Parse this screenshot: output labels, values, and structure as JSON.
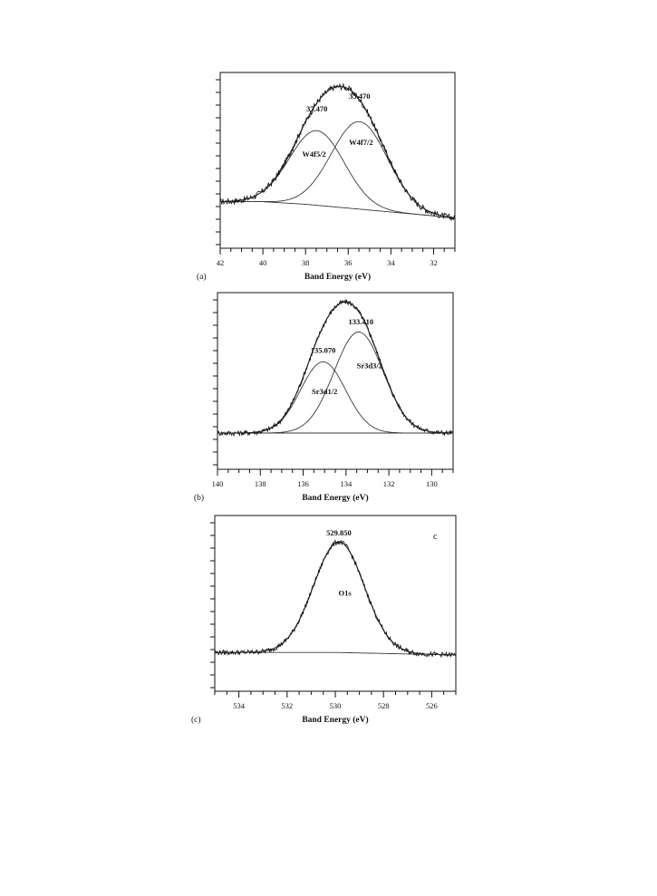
{
  "colors": {
    "ink": "#111111",
    "curve": "#3a3a3a",
    "background": "#ffffff"
  },
  "chart_data": [
    {
      "type": "line",
      "panel_label": "(a)",
      "xlabel": "Band Energy (eV)",
      "ylabel": "",
      "xlim": [
        42,
        31
      ],
      "x_reversed": true,
      "x_ticks": [
        42,
        40,
        38,
        36,
        34,
        32
      ],
      "y_ticks_unlabeled": true,
      "y_axis_scale": "arbitrary intensity (0 = baseline bottom, 1 = maximum)",
      "ylim": [
        0,
        1
      ],
      "grid": false,
      "legend": "none",
      "baseline": {
        "description": "background",
        "x": [
          42,
          40,
          38,
          36,
          34,
          32,
          31
        ],
        "y": [
          0.08,
          0.08,
          0.06,
          0.03,
          0.0,
          -0.03,
          -0.05
        ]
      },
      "peaks": [
        {
          "center": 37.47,
          "amplitude": 0.58,
          "sigma": 1.28
        },
        {
          "center": 35.47,
          "amplitude": 0.68,
          "sigma": 1.32
        }
      ],
      "data_noise": 0.025,
      "annotations": [
        {
          "text": "37.470",
          "x": 37.47,
          "y": 0.78
        },
        {
          "text": "35.470",
          "x": 35.47,
          "y": 0.88
        },
        {
          "text": "W4f5/2",
          "x": 37.6,
          "y": 0.43
        },
        {
          "text": "W4f7/2",
          "x": 35.4,
          "y": 0.52
        }
      ]
    },
    {
      "type": "line",
      "panel_label": "(b)",
      "xlabel": "Band Energy (eV)",
      "ylabel": "",
      "xlim": [
        140,
        129
      ],
      "x_reversed": true,
      "x_ticks": [
        140,
        138,
        136,
        134,
        132,
        130
      ],
      "y_ticks_unlabeled": true,
      "y_axis_scale": "arbitrary intensity",
      "ylim": [
        0,
        1
      ],
      "grid": false,
      "legend": "none",
      "baseline": {
        "description": "background",
        "x": [
          140,
          138,
          136,
          134,
          132,
          130,
          129
        ],
        "y": [
          0.0,
          0.0,
          0.0,
          0.0,
          0.0,
          0.0,
          0.0
        ]
      },
      "peaks": [
        {
          "center": 135.07,
          "amplitude": 0.55,
          "sigma": 1.05
        },
        {
          "center": 133.41,
          "amplitude": 0.78,
          "sigma": 1.15
        }
      ],
      "data_noise": 0.02,
      "annotations": [
        {
          "text": "135.070",
          "x": 135.07,
          "y": 0.62
        },
        {
          "text": "133.410",
          "x": 133.3,
          "y": 0.84
        },
        {
          "text": "Sr3d3/2",
          "x": 132.9,
          "y": 0.5
        },
        {
          "text": "Sr3d1/2",
          "x": 135.0,
          "y": 0.3
        }
      ]
    },
    {
      "type": "line",
      "panel_label": "(c)",
      "corner_label": "c",
      "xlabel": "Band Energy (eV)",
      "ylabel": "",
      "xlim": [
        535,
        525
      ],
      "x_reversed": true,
      "x_ticks": [
        534,
        532,
        530,
        528,
        526
      ],
      "y_ticks_unlabeled": true,
      "y_axis_scale": "arbitrary intensity",
      "ylim": [
        0,
        1
      ],
      "grid": false,
      "legend": "none",
      "baseline": {
        "description": "background",
        "x": [
          535,
          530,
          525
        ],
        "y": [
          0.02,
          0.02,
          0.0
        ]
      },
      "peaks": [
        {
          "center": 529.85,
          "amplitude": 0.86,
          "sigma": 1.05
        }
      ],
      "data_noise": 0.02,
      "annotations": [
        {
          "text": "529.850",
          "x": 529.85,
          "y": 0.93
        },
        {
          "text": "O1s",
          "x": 529.6,
          "y": 0.46
        }
      ]
    }
  ]
}
